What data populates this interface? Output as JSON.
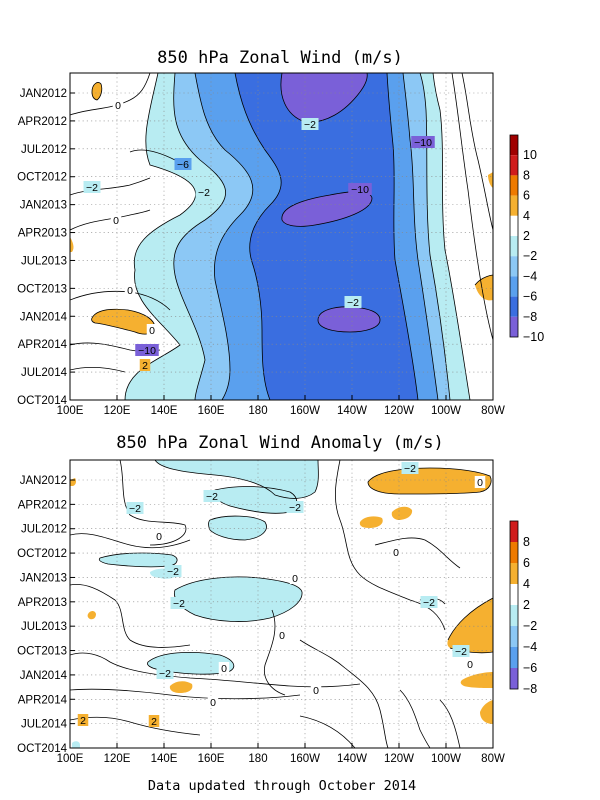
{
  "chart_data": [
    {
      "type": "heatmap",
      "title": "850 hPa Zonal Wind (m/s)",
      "x_tick_labels": [
        "100E",
        "120E",
        "140E",
        "160E",
        "180",
        "160W",
        "140W",
        "120W",
        "100W",
        "80W"
      ],
      "y_tick_labels": [
        "JAN2012",
        "APR2012",
        "JUL2012",
        "OCT2012",
        "JAN2013",
        "APR2013",
        "JUL2013",
        "OCT2013",
        "JAN2014",
        "APR2014",
        "JUL2014",
        "OCT2014"
      ],
      "xlim": [
        "100E",
        "80W"
      ],
      "ylim": [
        "JAN2012",
        "OCT2014"
      ],
      "grid": true,
      "colorbar": {
        "labels": [
          "10",
          "8",
          "6",
          "4",
          "2",
          "-2",
          "-4",
          "-6",
          "-8",
          "-10"
        ],
        "colors": [
          "#a00000",
          "#d01c1c",
          "#ee7a00",
          "#f5b030",
          "#ffffff",
          "#b8ecf2",
          "#8cc8f5",
          "#5aa0ee",
          "#3a6ee0",
          "#7a60d8"
        ]
      },
      "contour_labels": [
        "0",
        "-2",
        "-10",
        "-6",
        "-2",
        "-2",
        "0",
        "-10",
        "0",
        "-2",
        "0",
        "-10",
        "2",
        "0",
        "-2"
      ]
    },
    {
      "type": "heatmap",
      "title": "850 hPa Zonal Wind Anomaly (m/s)",
      "x_tick_labels": [
        "100E",
        "120E",
        "140E",
        "160E",
        "180",
        "160W",
        "140W",
        "120W",
        "100W",
        "80W"
      ],
      "y_tick_labels": [
        "JAN2012",
        "APR2012",
        "JUL2012",
        "OCT2012",
        "JAN2013",
        "APR2013",
        "JUL2013",
        "OCT2013",
        "JAN2014",
        "APR2014",
        "JUL2014",
        "OCT2014"
      ],
      "xlim": [
        "100E",
        "80W"
      ],
      "ylim": [
        "JAN2012",
        "OCT2014"
      ],
      "grid": true,
      "colorbar": {
        "labels": [
          "8",
          "6",
          "4",
          "2",
          "-2",
          "-4",
          "-6",
          "-8"
        ],
        "colors": [
          "#d01c1c",
          "#ee7a00",
          "#f5b030",
          "#ffffff",
          "#b8ecf2",
          "#8cc8f5",
          "#5aa0ee",
          "#7a60d8"
        ]
      },
      "contour_labels": [
        "-2",
        "-2",
        "-2",
        "-2",
        "0",
        "-2",
        "0",
        "-2",
        "-2",
        "0",
        "0",
        "-2",
        "0",
        "-2",
        "0",
        "0",
        "2",
        "2",
        "0",
        "0"
      ]
    }
  ],
  "footer": "Data updated through October 2014"
}
